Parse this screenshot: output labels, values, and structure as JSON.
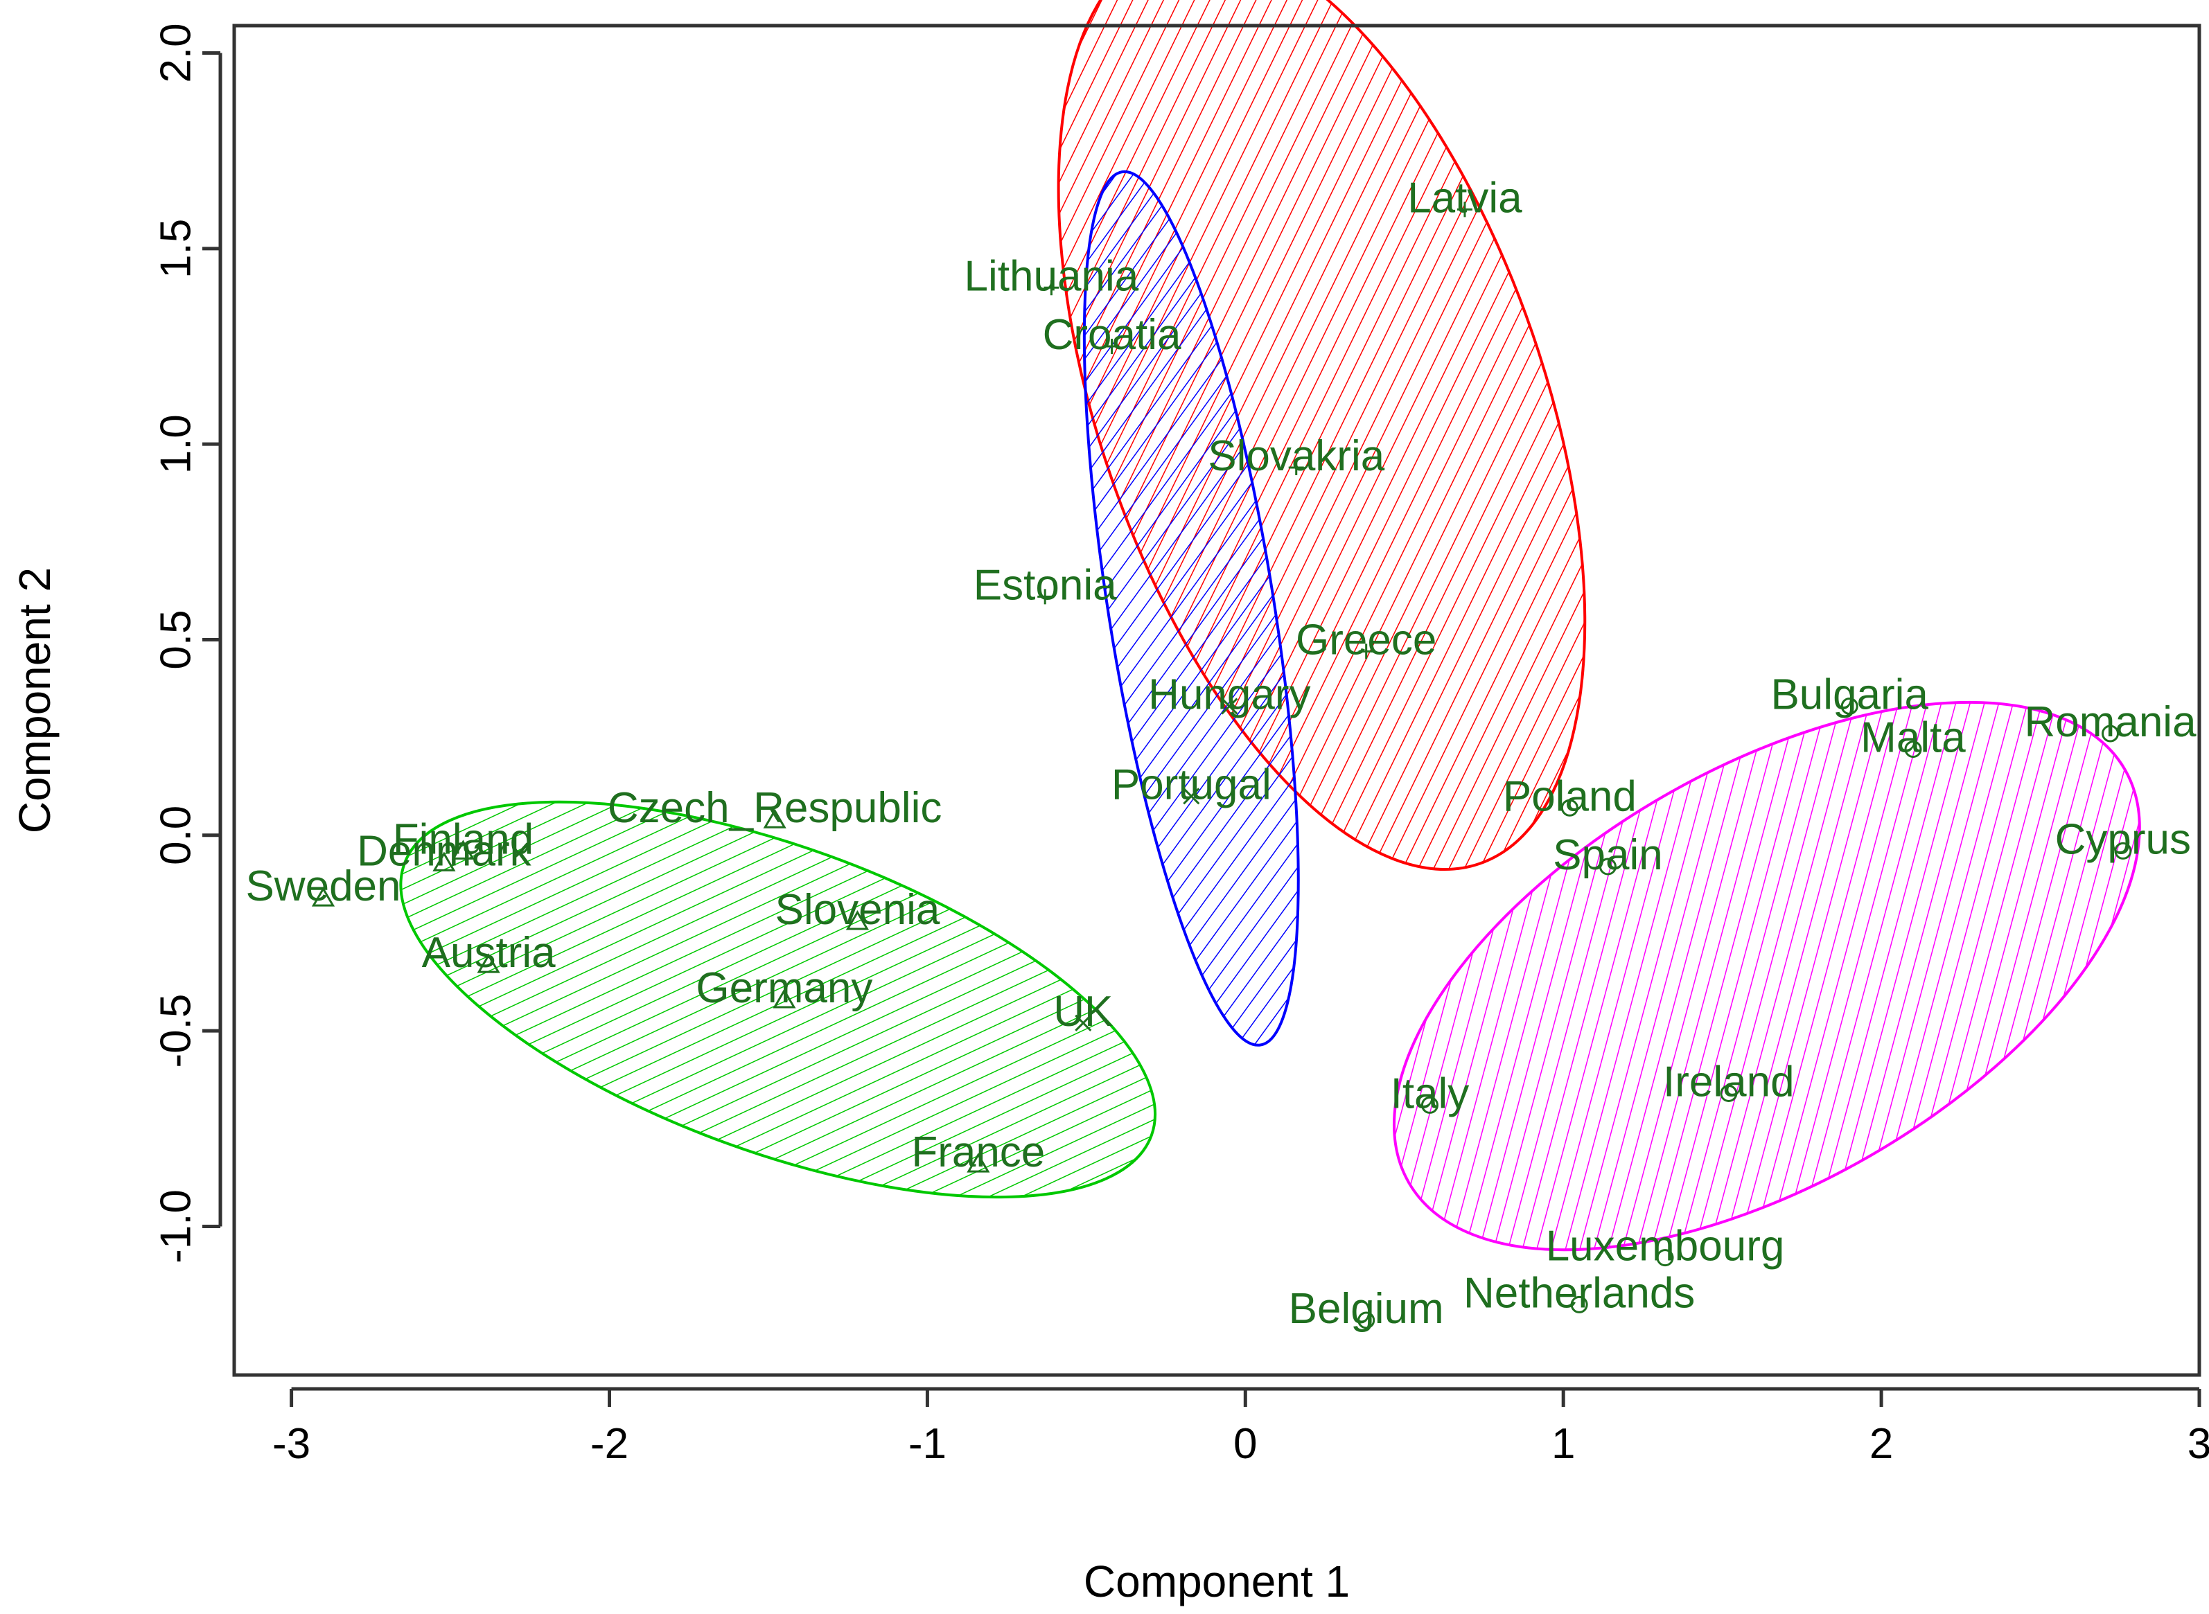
{
  "chart_data": {
    "type": "scatter",
    "title": "",
    "xlabel": "Component 1",
    "ylabel": "Component 2",
    "xlim": [
      -3.18,
      3.0
    ],
    "ylim": [
      -1.38,
      2.07
    ],
    "x_ticks": [
      -3,
      -2,
      -1,
      0,
      1,
      2,
      3
    ],
    "y_ticks": [
      -1.0,
      -0.5,
      0.0,
      0.5,
      1.0,
      1.5,
      2.0
    ],
    "x_tick_labels": [
      "-3",
      "-2",
      "-1",
      "0",
      "1",
      "2",
      "3"
    ],
    "y_tick_labels": [
      "-1.0",
      "-0.5",
      "0.0",
      "0.5",
      "1.0",
      "1.5",
      "2.0"
    ],
    "grid": false,
    "legend": "none",
    "label_color": "#1f6f1f",
    "clusters": [
      {
        "color": "#ff0000",
        "marker": "plus",
        "ellipse": {
          "cx": 0.24,
          "cy": 1.1,
          "rx": 0.7,
          "ry": 1.24,
          "angle_deg": 19
        },
        "points": [
          {
            "label": "Latvia",
            "x": 0.69,
            "y": 1.6
          },
          {
            "label": "Lithuania",
            "x": -0.61,
            "y": 1.4
          },
          {
            "label": "Croatia",
            "x": -0.42,
            "y": 1.25
          },
          {
            "label": "Slovakria",
            "x": 0.16,
            "y": 0.94
          },
          {
            "label": "Estonia",
            "x": -0.63,
            "y": 0.61
          },
          {
            "label": "Greece",
            "x": 0.38,
            "y": 0.47
          }
        ]
      },
      {
        "color": "#0000ff",
        "marker": "x",
        "ellipse": {
          "cx": -0.17,
          "cy": 0.58,
          "rx": 0.26,
          "ry": 1.13,
          "angle_deg": 9
        },
        "points": [
          {
            "label": "Hungary",
            "x": -0.05,
            "y": 0.33
          },
          {
            "label": "Portugal",
            "x": -0.17,
            "y": 0.1
          },
          {
            "label": "UK",
            "x": -0.51,
            "y": -0.48
          }
        ]
      },
      {
        "color": "#00c800",
        "marker": "triangle",
        "ellipse": {
          "cx": -1.47,
          "cy": -0.42,
          "rx": 1.25,
          "ry": 0.39,
          "angle_deg": -20
        },
        "points": [
          {
            "label": "Finland",
            "x": -2.46,
            "y": -0.04
          },
          {
            "label": "Denmark",
            "x": -2.52,
            "y": -0.07
          },
          {
            "label": "Sweden",
            "x": -2.9,
            "y": -0.16
          },
          {
            "label": "Czech_Respublic",
            "x": -1.48,
            "y": 0.04
          },
          {
            "label": "Slovenia",
            "x": -1.22,
            "y": -0.22
          },
          {
            "label": "Austria",
            "x": -2.38,
            "y": -0.33
          },
          {
            "label": "Germany",
            "x": -1.45,
            "y": -0.42
          },
          {
            "label": "France",
            "x": -0.84,
            "y": -0.84
          }
        ]
      },
      {
        "color": "#ff00ff",
        "marker": "circle",
        "ellipse": {
          "cx": 1.64,
          "cy": -0.36,
          "rx": 1.3,
          "ry": 0.53,
          "angle_deg": 30
        },
        "points": [
          {
            "label": "Bulgaria",
            "x": 1.9,
            "y": 0.33
          },
          {
            "label": "Malta",
            "x": 2.1,
            "y": 0.22
          },
          {
            "label": "Romania",
            "x": 2.72,
            "y": 0.26
          },
          {
            "label": "Poland",
            "x": 1.02,
            "y": 0.07
          },
          {
            "label": "Cyprus",
            "x": 2.76,
            "y": -0.04
          },
          {
            "label": "Spain",
            "x": 1.14,
            "y": -0.08
          },
          {
            "label": "Italy",
            "x": 0.58,
            "y": -0.69
          },
          {
            "label": "Ireland",
            "x": 1.52,
            "y": -0.66
          },
          {
            "label": "Luxembourg",
            "x": 1.32,
            "y": -1.08
          },
          {
            "label": "Netherlands",
            "x": 1.05,
            "y": -1.2
          },
          {
            "label": "Belgium",
            "x": 0.38,
            "y": -1.24
          }
        ]
      }
    ]
  }
}
